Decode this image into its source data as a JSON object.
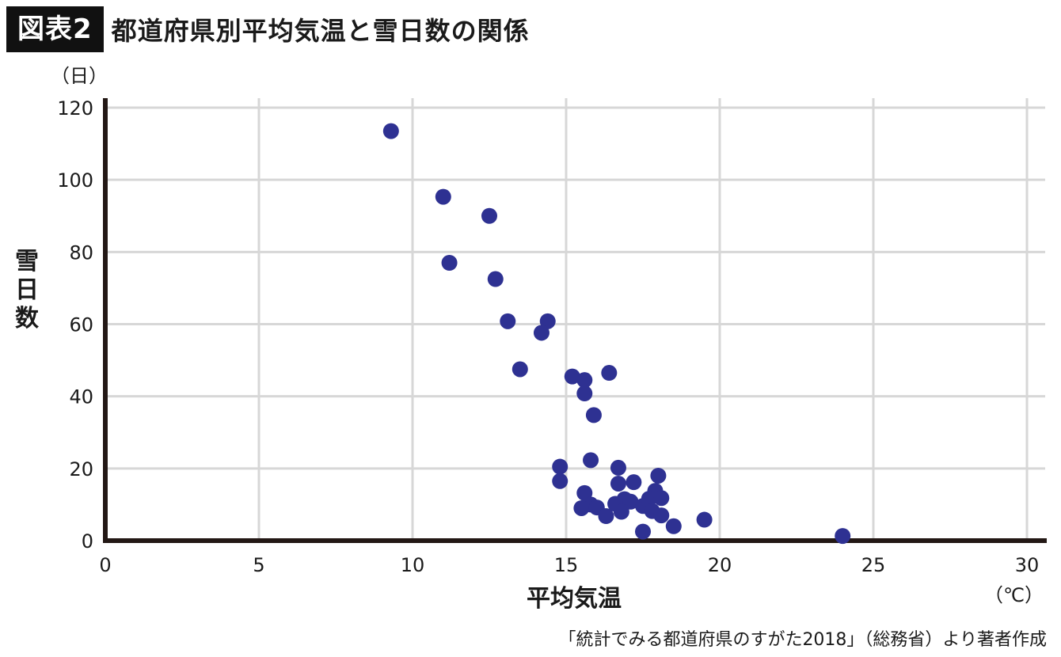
{
  "header": {
    "badge": "図表2",
    "title": "都道府県別平均気温と雪日数の関係"
  },
  "source": "「統計でみる都道府県のすがた2018」（総務省）より著者作成",
  "chart_data": {
    "type": "scatter",
    "title": "都道府県別平均気温と雪日数の関係",
    "xlabel": "平均気温",
    "ylabel": "雪日数",
    "x_unit": "（℃）",
    "y_unit": "（日）",
    "xlim": [
      0,
      30
    ],
    "ylim": [
      0,
      120
    ],
    "xticks": [
      0,
      5,
      10,
      15,
      20,
      25,
      30
    ],
    "yticks": [
      0,
      20,
      40,
      60,
      80,
      100,
      120
    ],
    "grid": true,
    "point_color": "#2e3192",
    "points": [
      {
        "x": 9.3,
        "y": 113.5
      },
      {
        "x": 11.0,
        "y": 95.3
      },
      {
        "x": 12.5,
        "y": 90.0
      },
      {
        "x": 11.2,
        "y": 77.0
      },
      {
        "x": 12.7,
        "y": 72.5
      },
      {
        "x": 13.1,
        "y": 60.8
      },
      {
        "x": 14.4,
        "y": 60.8
      },
      {
        "x": 14.2,
        "y": 57.6
      },
      {
        "x": 13.5,
        "y": 47.5
      },
      {
        "x": 15.2,
        "y": 45.5
      },
      {
        "x": 15.6,
        "y": 44.5
      },
      {
        "x": 16.4,
        "y": 46.5
      },
      {
        "x": 15.6,
        "y": 40.8
      },
      {
        "x": 15.9,
        "y": 34.8
      },
      {
        "x": 14.8,
        "y": 20.5
      },
      {
        "x": 15.8,
        "y": 22.3
      },
      {
        "x": 16.7,
        "y": 20.2
      },
      {
        "x": 14.8,
        "y": 16.5
      },
      {
        "x": 16.7,
        "y": 15.8
      },
      {
        "x": 17.2,
        "y": 16.2
      },
      {
        "x": 18.0,
        "y": 18.0
      },
      {
        "x": 15.6,
        "y": 13.2
      },
      {
        "x": 17.9,
        "y": 13.8
      },
      {
        "x": 15.8,
        "y": 10.0
      },
      {
        "x": 15.5,
        "y": 9.0
      },
      {
        "x": 16.0,
        "y": 9.2
      },
      {
        "x": 16.6,
        "y": 10.2
      },
      {
        "x": 16.9,
        "y": 11.5
      },
      {
        "x": 17.1,
        "y": 10.8
      },
      {
        "x": 17.5,
        "y": 9.6
      },
      {
        "x": 17.7,
        "y": 11.6
      },
      {
        "x": 18.1,
        "y": 11.8
      },
      {
        "x": 17.8,
        "y": 8.2
      },
      {
        "x": 16.8,
        "y": 8.0
      },
      {
        "x": 16.3,
        "y": 6.8
      },
      {
        "x": 18.1,
        "y": 7.0
      },
      {
        "x": 18.5,
        "y": 4.0
      },
      {
        "x": 19.5,
        "y": 5.8
      },
      {
        "x": 17.5,
        "y": 2.5
      },
      {
        "x": 24.0,
        "y": 1.3
      }
    ]
  }
}
